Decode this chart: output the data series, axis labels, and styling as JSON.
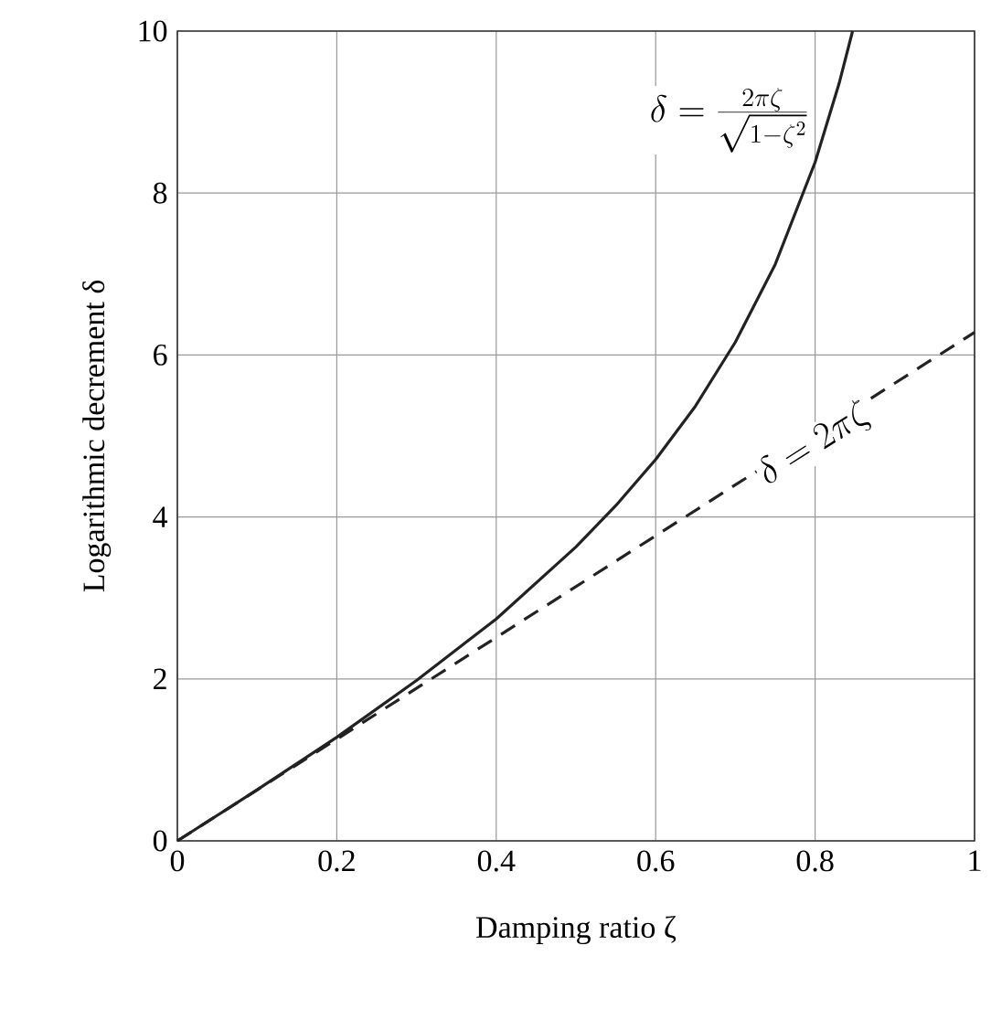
{
  "chart_data": {
    "type": "line",
    "xlabel": "Damping ratio ζ",
    "ylabel": "Logarithmic decrement δ",
    "xlim": [
      0,
      1
    ],
    "ylim": [
      0,
      10
    ],
    "xticks": [
      0,
      0.2,
      0.4,
      0.6,
      0.8,
      1
    ],
    "yticks": [
      0,
      2,
      4,
      6,
      8,
      10
    ],
    "grid": true,
    "series": [
      {
        "name": "\\delta = \\frac{2\\pi\\zeta}{\\sqrt{1 - \\zeta^{2}}}",
        "color": "#222222",
        "line_style": "solid",
        "x": [
          0,
          0.1,
          0.2,
          0.3,
          0.4,
          0.5,
          0.55,
          0.6,
          0.65,
          0.7,
          0.75,
          0.8,
          0.83,
          0.847
        ],
        "values": [
          0,
          0.63,
          1.28,
          1.98,
          2.74,
          3.63,
          4.14,
          4.71,
          5.37,
          6.16,
          7.12,
          8.38,
          9.35,
          10
        ]
      },
      {
        "name": "\\delta = 2\\pi\\zeta",
        "color": "#222222",
        "line_style": "dashed",
        "x": [
          0,
          1
        ],
        "values": [
          0,
          6.28
        ]
      }
    ]
  }
}
